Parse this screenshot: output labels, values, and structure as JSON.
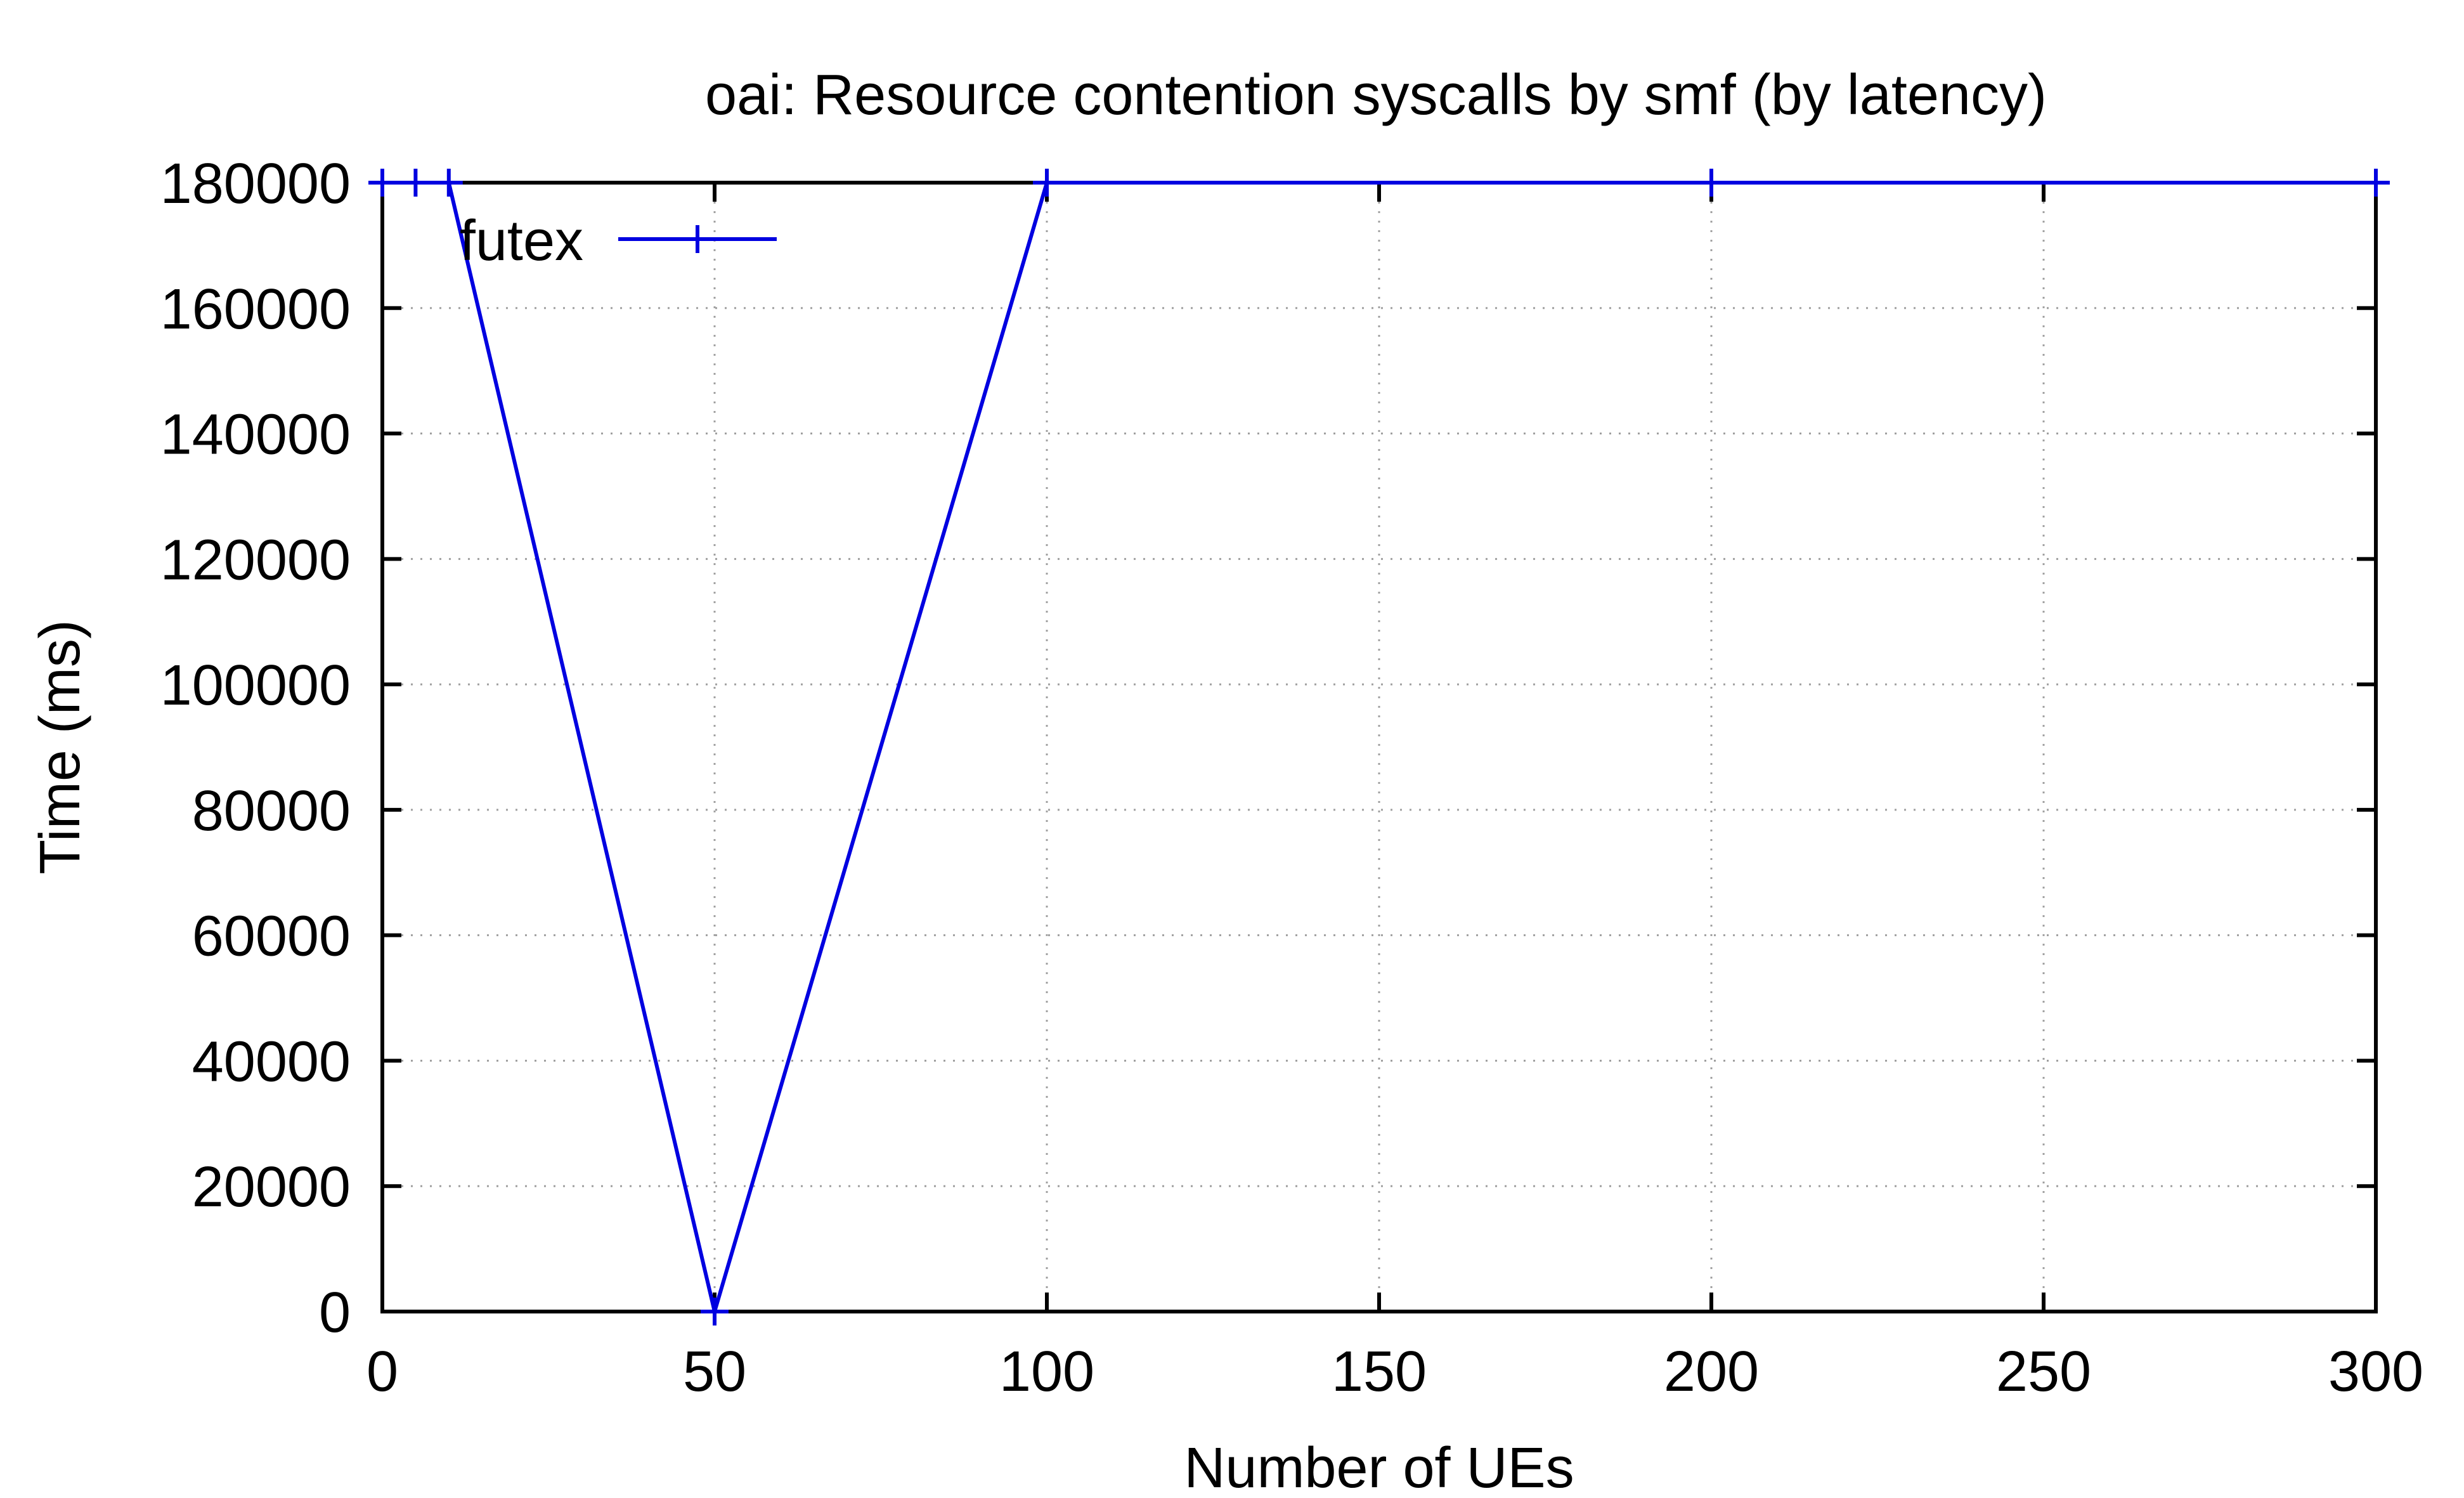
{
  "chart_data": {
    "type": "line",
    "title": "oai: Resource contention syscalls by smf (by latency)",
    "xlabel": "Number of UEs",
    "ylabel": "Time (ms)",
    "xlim": [
      0,
      300
    ],
    "ylim": [
      0,
      180000
    ],
    "xticks": [
      0,
      50,
      100,
      150,
      200,
      250,
      300
    ],
    "yticks": [
      0,
      20000,
      40000,
      60000,
      80000,
      100000,
      120000,
      140000,
      160000,
      180000
    ],
    "grid": true,
    "legend_position": "top-left",
    "series": [
      {
        "name": "futex",
        "color": "#0000e0",
        "marker": "plus",
        "x": [
          0,
          5,
          10,
          50,
          100,
          200,
          300
        ],
        "y": [
          180000,
          180000,
          180000,
          0,
          180000,
          180000,
          180000
        ]
      }
    ]
  }
}
